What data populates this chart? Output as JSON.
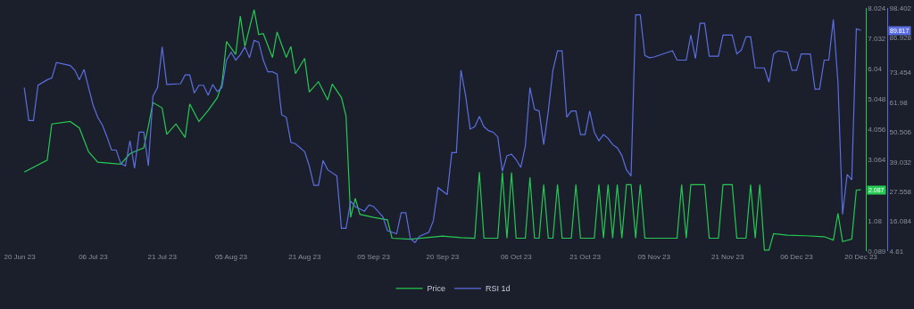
{
  "chart_data": {
    "type": "line",
    "xlim": [
      "2023-06-20",
      "2023-12-21"
    ],
    "xticks": [
      {
        "value": "2023-06-20",
        "label": "20 Jun 23"
      },
      {
        "value": "2023-07-06",
        "label": "06 Jul 23"
      },
      {
        "value": "2023-07-21",
        "label": "21 Jul 23"
      },
      {
        "value": "2023-08-05",
        "label": "05 Aug 23"
      },
      {
        "value": "2023-08-21",
        "label": "21 Aug 23"
      },
      {
        "value": "2023-09-05",
        "label": "05 Sep 23"
      },
      {
        "value": "2023-09-20",
        "label": "20 Sep 23"
      },
      {
        "value": "2023-10-06",
        "label": "06 Oct 23"
      },
      {
        "value": "2023-10-21",
        "label": "21 Oct 23"
      },
      {
        "value": "2023-11-05",
        "label": "05 Nov 23"
      },
      {
        "value": "2023-11-21",
        "label": "21 Nov 23"
      },
      {
        "value": "2023-12-06",
        "label": "06 Dec 23"
      },
      {
        "value": "2023-12-20",
        "label": "20 Dec 23"
      }
    ],
    "ylim": [
      0.089,
      8.024
    ],
    "yticks": [
      0.089,
      1.08,
      3.064,
      4.056,
      5.048,
      6.04,
      7.032,
      8.024
    ],
    "y2lim": [
      4.61,
      98.402
    ],
    "y2ticks": [
      4.61,
      16.084,
      27.558,
      39.032,
      50.506,
      61.98,
      73.454,
      86.928,
      98.402
    ],
    "legend": "bottom",
    "annotations": [
      "2.087",
      "89.817"
    ],
    "series": [
      {
        "name": "Price",
        "color": "#26c953",
        "x": [
          "2023-06-21",
          "2023-06-26",
          "2023-06-27",
          "2023-07-01",
          "2023-07-03",
          "2023-07-05",
          "2023-07-07",
          "2023-07-12",
          "2023-07-14",
          "2023-07-17",
          "2023-07-18",
          "2023-07-19",
          "2023-07-21",
          "2023-07-22",
          "2023-07-24",
          "2023-07-26",
          "2023-07-27",
          "2023-07-29",
          "2023-07-31",
          "2023-08-02",
          "2023-08-03",
          "2023-08-04",
          "2023-08-06",
          "2023-08-07",
          "2023-08-08",
          "2023-08-09",
          "2023-08-10",
          "2023-08-11",
          "2023-08-12",
          "2023-08-14",
          "2023-08-15",
          "2023-08-17",
          "2023-08-18",
          "2023-08-19",
          "2023-08-21",
          "2023-08-22",
          "2023-08-24",
          "2023-08-26",
          "2023-08-27",
          "2023-08-29",
          "2023-08-30",
          "2023-08-31",
          "2023-09-01",
          "2023-09-02",
          "2023-09-05",
          "2023-09-08",
          "2023-09-09",
          "2023-09-13",
          "2023-09-20",
          "2023-09-24",
          "2023-09-27",
          "2023-09-28",
          "2023-09-29",
          "2023-10-02",
          "2023-10-03",
          "2023-10-04",
          "2023-10-05",
          "2023-10-06",
          "2023-10-08",
          "2023-10-09",
          "2023-10-10",
          "2023-10-11",
          "2023-10-12",
          "2023-10-13",
          "2023-10-14",
          "2023-10-15",
          "2023-10-16",
          "2023-10-18",
          "2023-10-19",
          "2023-10-20",
          "2023-10-23",
          "2023-10-24",
          "2023-10-25",
          "2023-10-26",
          "2023-10-27",
          "2023-10-28",
          "2023-10-29",
          "2023-10-30",
          "2023-10-31",
          "2023-11-01",
          "2023-11-02",
          "2023-11-03",
          "2023-11-10",
          "2023-11-11",
          "2023-11-12",
          "2023-11-13",
          "2023-11-16",
          "2023-11-17",
          "2023-11-19",
          "2023-11-20",
          "2023-11-22",
          "2023-11-23",
          "2023-11-25",
          "2023-11-26",
          "2023-11-27",
          "2023-11-28",
          "2023-11-29",
          "2023-11-30",
          "2023-12-01",
          "2023-12-04",
          "2023-12-08",
          "2023-12-12",
          "2023-12-14",
          "2023-12-15",
          "2023-12-16",
          "2023-12-18",
          "2023-12-19",
          "2023-12-20"
        ],
        "values": [
          2.67,
          3.06,
          4.24,
          4.32,
          4.11,
          3.33,
          2.99,
          2.93,
          3.27,
          3.46,
          4.16,
          4.94,
          4.76,
          3.9,
          4.24,
          3.8,
          4.89,
          4.32,
          4.68,
          5.1,
          5.54,
          6.93,
          6.51,
          7.76,
          6.77,
          7.37,
          7.97,
          7.16,
          7.19,
          6.41,
          7.24,
          6.41,
          6.77,
          5.88,
          6.38,
          5.28,
          5.62,
          5.02,
          5.54,
          5.1,
          4.5,
          1.19,
          1.81,
          1.29,
          1.19,
          1.11,
          0.51,
          0.48,
          0.58,
          0.53,
          0.51,
          2.67,
          0.51,
          0.51,
          2.65,
          0.51,
          2.65,
          0.51,
          0.51,
          2.49,
          0.51,
          0.51,
          2.26,
          0.51,
          0.51,
          2.26,
          0.51,
          0.51,
          2.26,
          0.51,
          0.51,
          2.26,
          0.51,
          2.26,
          0.51,
          2.26,
          0.51,
          2.26,
          2.26,
          0.51,
          2.26,
          0.51,
          0.51,
          2.26,
          0.51,
          2.26,
          2.26,
          0.51,
          0.51,
          2.26,
          2.26,
          0.51,
          0.51,
          2.26,
          0.51,
          2.26,
          0.12,
          0.12,
          0.66,
          0.61,
          0.59,
          0.56,
          0.45,
          1.32,
          0.4,
          0.48,
          2.08,
          2.09
        ]
      },
      {
        "name": "RSI 1d",
        "color": "#5b6ee1",
        "axis": "y2",
        "x": [
          "2023-06-21",
          "2023-06-22",
          "2023-06-23",
          "2023-06-24",
          "2023-06-26",
          "2023-06-27",
          "2023-06-28",
          "2023-07-01",
          "2023-07-02",
          "2023-07-03",
          "2023-07-04",
          "2023-07-05",
          "2023-07-06",
          "2023-07-07",
          "2023-07-08",
          "2023-07-09",
          "2023-07-10",
          "2023-07-11",
          "2023-07-12",
          "2023-07-13",
          "2023-07-14",
          "2023-07-15",
          "2023-07-16",
          "2023-07-17",
          "2023-07-18",
          "2023-07-19",
          "2023-07-20",
          "2023-07-21",
          "2023-07-22",
          "2023-07-25",
          "2023-07-26",
          "2023-07-27",
          "2023-07-28",
          "2023-07-29",
          "2023-07-30",
          "2023-07-31",
          "2023-08-01",
          "2023-08-02",
          "2023-08-03",
          "2023-08-04",
          "2023-08-05",
          "2023-08-06",
          "2023-08-07",
          "2023-08-08",
          "2023-08-09",
          "2023-08-10",
          "2023-08-11",
          "2023-08-12",
          "2023-08-13",
          "2023-08-14",
          "2023-08-15",
          "2023-08-16",
          "2023-08-17",
          "2023-08-18",
          "2023-08-19",
          "2023-08-21",
          "2023-08-22",
          "2023-08-23",
          "2023-08-24",
          "2023-08-25",
          "2023-08-26",
          "2023-08-28",
          "2023-08-29",
          "2023-08-30",
          "2023-08-31",
          "2023-09-01",
          "2023-09-03",
          "2023-09-04",
          "2023-09-05",
          "2023-09-07",
          "2023-09-08",
          "2023-09-10",
          "2023-09-11",
          "2023-09-12",
          "2023-09-13",
          "2023-09-14",
          "2023-09-15",
          "2023-09-17",
          "2023-09-18",
          "2023-09-19",
          "2023-09-21",
          "2023-09-22",
          "2023-09-23",
          "2023-09-24",
          "2023-09-25",
          "2023-09-26",
          "2023-09-27",
          "2023-09-28",
          "2023-09-29",
          "2023-09-30",
          "2023-10-01",
          "2023-10-02",
          "2023-10-03",
          "2023-10-04",
          "2023-10-05",
          "2023-10-06",
          "2023-10-07",
          "2023-10-08",
          "2023-10-09",
          "2023-10-10",
          "2023-10-11",
          "2023-10-12",
          "2023-10-13",
          "2023-10-14",
          "2023-10-15",
          "2023-10-16",
          "2023-10-17",
          "2023-10-18",
          "2023-10-19",
          "2023-10-20",
          "2023-10-21",
          "2023-10-22",
          "2023-10-23",
          "2023-10-24",
          "2023-10-25",
          "2023-10-26",
          "2023-10-27",
          "2023-10-28",
          "2023-10-29",
          "2023-10-30",
          "2023-10-31",
          "2023-11-01",
          "2023-11-02",
          "2023-11-03",
          "2023-11-04",
          "2023-11-05",
          "2023-11-07",
          "2023-11-09",
          "2023-11-10",
          "2023-11-12",
          "2023-11-13",
          "2023-11-14",
          "2023-11-15",
          "2023-11-16",
          "2023-11-17",
          "2023-11-19",
          "2023-11-20",
          "2023-11-22",
          "2023-11-23",
          "2023-11-24",
          "2023-11-25",
          "2023-11-26",
          "2023-11-27",
          "2023-11-29",
          "2023-11-30",
          "2023-12-01",
          "2023-12-02",
          "2023-12-04",
          "2023-12-05",
          "2023-12-06",
          "2023-12-07",
          "2023-12-09",
          "2023-12-10",
          "2023-12-11",
          "2023-12-12",
          "2023-12-13",
          "2023-12-14",
          "2023-12-15",
          "2023-12-16",
          "2023-12-17",
          "2023-12-18",
          "2023-12-19",
          "2023-12-20"
        ],
        "values": [
          67.7,
          55.0,
          55.0,
          68.6,
          70.7,
          71.4,
          77.4,
          76.2,
          74.4,
          70.7,
          74.7,
          67.7,
          60.8,
          56.2,
          53.2,
          48.7,
          43.6,
          43.6,
          38.4,
          37.5,
          47.2,
          36.6,
          50.5,
          50.5,
          37.5,
          64.4,
          67.7,
          83.4,
          68.9,
          69.2,
          72.6,
          72.6,
          65.6,
          68.6,
          68.6,
          64.7,
          68.9,
          66.2,
          67.7,
          78.3,
          81.3,
          78.3,
          80.4,
          83.4,
          79.2,
          85.9,
          85.2,
          78.3,
          73.8,
          73.8,
          72.9,
          57.2,
          56.3,
          46.6,
          46.0,
          43.0,
          37.5,
          30.0,
          30.0,
          39.6,
          36.0,
          33.6,
          13.4,
          13.4,
          23.9,
          21.8,
          20.0,
          22.4,
          21.8,
          17.9,
          12.5,
          11.3,
          19.4,
          19.4,
          9.4,
          7.9,
          10.4,
          11.9,
          16.4,
          29.1,
          26.4,
          42.6,
          42.6,
          74.4,
          64.7,
          51.7,
          52.6,
          56.6,
          52.6,
          51.1,
          50.5,
          48.7,
          35.4,
          41.4,
          42.0,
          39.9,
          36.9,
          45.1,
          67.7,
          59.3,
          58.7,
          45.7,
          58.7,
          74.4,
          81.9,
          81.9,
          56.3,
          58.7,
          58.7,
          49.6,
          49.6,
          58.7,
          50.5,
          47.2,
          49.6,
          48.1,
          45.7,
          44.5,
          41.5,
          36.0,
          33.6,
          95.8,
          95.8,
          80.1,
          79.2,
          79.5,
          80.7,
          81.9,
          78.3,
          78.3,
          88.0,
          78.9,
          92.5,
          92.5,
          79.8,
          79.8,
          88.0,
          88.0,
          80.7,
          82.2,
          87.3,
          87.3,
          75.3,
          75.3,
          69.8,
          80.7,
          81.9,
          81.3,
          74.4,
          74.4,
          80.7,
          80.7,
          67.1,
          67.1,
          78.3,
          78.3,
          94.0,
          69.8,
          18.8,
          34.2,
          32.1,
          90.4,
          89.8
        ]
      }
    ]
  }
}
